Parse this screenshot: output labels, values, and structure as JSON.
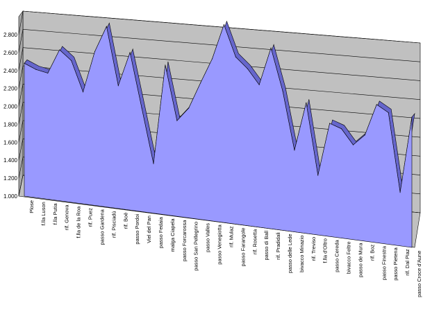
{
  "chart_data": {
    "type": "area",
    "style": "3d",
    "title": "",
    "xlabel": "",
    "ylabel": "",
    "ylim": [
      1000,
      2800
    ],
    "y_ticks": [
      "1.000",
      "1.200",
      "1.400",
      "1.600",
      "1.800",
      "2.000",
      "2.200",
      "2.400",
      "2.600",
      "2.800"
    ],
    "grid": true,
    "legend": "none",
    "colors": {
      "area_front": "#9999ff",
      "area_top": "#6666cc",
      "area_edge": "#000000",
      "back_wall": "#c0c0c0",
      "floor": "#c0c0c0",
      "gridline": "#000000"
    },
    "categories": [
      "Plose",
      "f.lla Luson",
      "f.lla Putia",
      "rif. Genova",
      "f.lla de la Roa",
      "rif. Puez",
      "passo Gardena",
      "rif. Pisciadù",
      "rif. Boè",
      "passo Pordoi",
      "Viel del Pan",
      "passo Fedaia",
      "malga Ciapela",
      "passo Forcarossa",
      "passo San Pellegrino",
      "passo Valles",
      "passo Venegiotta",
      "rif. Mulaz",
      "passo Farangole",
      "rif. Rosetta",
      "passo di Ball",
      "rif. Pradidali",
      "passo delle Lede",
      "bivacco Minazio",
      "rif. Treviso",
      "f.lla d'Oltro",
      "passo Cereda",
      "bivacco Feltre",
      "passo de Mura",
      "rif. Boz",
      "passo Finestra",
      "passo Pietena",
      "rif. Dal Piaz",
      "passo Croce d'Aune"
    ],
    "series": [
      {
        "values": [
          2450,
          2380,
          2340,
          2600,
          2480,
          2130,
          2580,
          2860,
          2200,
          2570,
          1950,
          1330,
          2430,
          1810,
          1950,
          2230,
          2500,
          2880,
          2520,
          2390,
          2210,
          2620,
          2140,
          1480,
          2010,
          1200,
          1780,
          1720,
          1540,
          1650,
          1990,
          1900,
          1010,
          1850
        ]
      }
    ]
  }
}
